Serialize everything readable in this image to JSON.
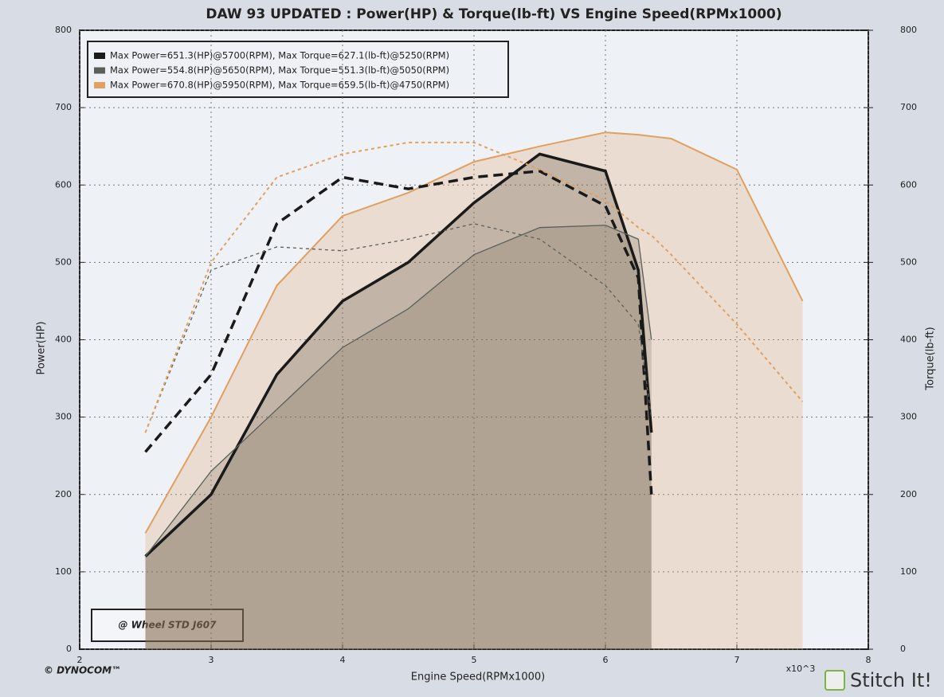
{
  "chart_data": {
    "type": "line",
    "title": "DAW 93 UPDATED : Power(HP) & Torque(lb-ft) VS Engine Speed(RPMx1000)",
    "x_label": "Engine Speed(RPMx1000)",
    "y_label": "Power(HP)",
    "y2_label": "Torque(lb-ft)",
    "x_multiplier": "x10^3",
    "annotation": "@ Wheel STD J607",
    "brand": "© DYNOCOM™",
    "watermark": "Stitch It!",
    "x": [
      2.5,
      3,
      3.5,
      4,
      4.5,
      5,
      5.5,
      6,
      6.25,
      6.35,
      6.5,
      7,
      7.5
    ],
    "xlim": [
      2,
      8
    ],
    "xticks": [
      2,
      3,
      4,
      5,
      6,
      7,
      8
    ],
    "ylim": [
      0,
      800
    ],
    "yticks": [
      0,
      100,
      200,
      300,
      400,
      500,
      600,
      700,
      800
    ],
    "y2lim": [
      0,
      800
    ],
    "y2ticks": [
      0,
      100,
      200,
      300,
      400,
      500,
      600,
      700,
      800
    ],
    "grid": true,
    "legend": "upper left",
    "series": [
      {
        "name": "Max Power=651.3(HP)@5700(RPM), Max Torque=627.1(lb-ft)@5250(RPM)",
        "color": "#1a1a1a",
        "values": [
          120,
          200,
          355,
          450,
          500,
          577,
          640,
          618,
          490,
          280,
          null,
          null,
          null
        ]
      },
      {
        "name": "Max Power=554.8(HP)@5650(RPM), Max Torque=551.3(lb-ft)@5050(RPM)",
        "color": "#5a5f5a",
        "values": [
          120,
          230,
          310,
          390,
          440,
          510,
          545,
          548,
          530,
          400,
          null,
          null,
          null
        ]
      },
      {
        "name": "Max Power=670.8(HP)@5950(RPM), Max Torque=659.5(lb-ft)@4750(RPM)",
        "color": "#e0a060",
        "values": [
          150,
          300,
          470,
          560,
          590,
          630,
          650,
          668,
          665,
          663,
          660,
          620,
          450
        ]
      },
      {
        "color": "#1a1a1a",
        "axis": "y2",
        "dashed": true,
        "values": [
          255,
          355,
          550,
          610,
          595,
          610,
          618,
          573,
          480,
          200,
          null,
          null,
          null
        ]
      },
      {
        "color": "#5a5f5a",
        "axis": "y2",
        "dashed": true,
        "values": [
          280,
          490,
          520,
          515,
          530,
          550,
          530,
          470,
          420,
          300,
          null,
          null,
          null
        ]
      },
      {
        "color": "#e0a060",
        "axis": "y2",
        "dashed": true,
        "values": [
          280,
          500,
          610,
          640,
          655,
          655,
          620,
          580,
          545,
          535,
          510,
          420,
          320
        ]
      }
    ]
  }
}
